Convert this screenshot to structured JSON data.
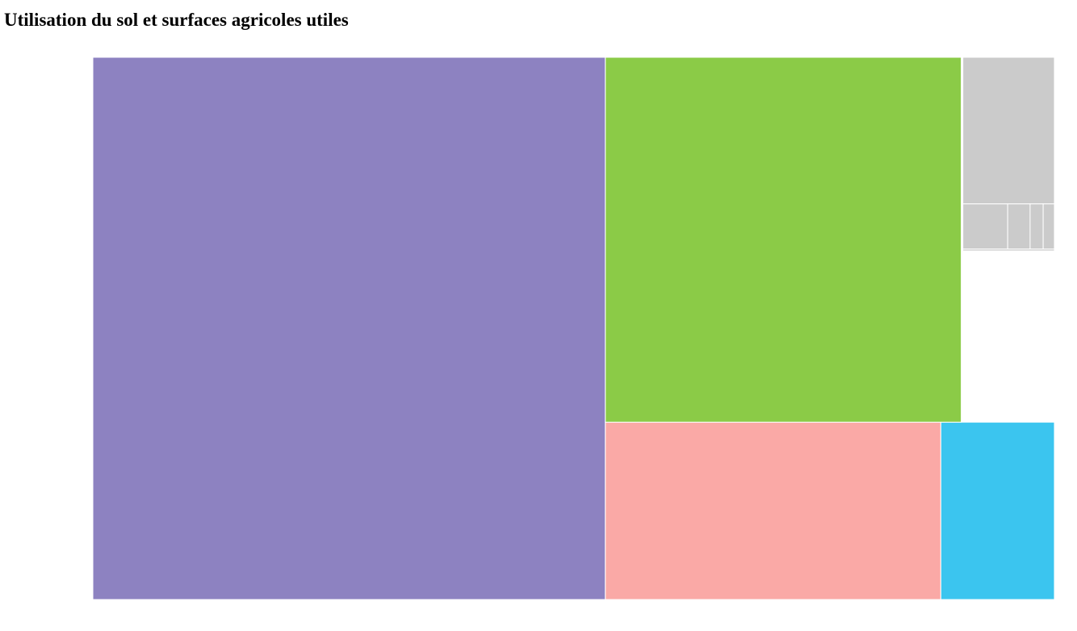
{
  "page": {
    "title": "Utilisation du sol et surfaces agricoles utiles"
  },
  "chart_data": {
    "type": "treemap",
    "title": "Utilisation du sol et surfaces agricoles utiles",
    "nodes": [
      {
        "value": 397446,
        "color": "#8d82c1"
      },
      {
        "children": [
          {
            "value": 185712,
            "color": "#8bcb47"
          },
          {
            "children": [
              {
                "value": 36806,
                "color": "#cbcbcb"
              },
              {
                "value": 5556,
                "color": "#cbcbcb"
              },
              {
                "value": 2778,
                "color": "#cbcbcb"
              },
              {
                "value": 1620,
                "color": "#cbcbcb"
              },
              {
                "value": 1389,
                "color": "#cbcbcb"
              },
              {
                "value": 463,
                "color": "#cbcbcb"
              }
            ]
          }
        ]
      },
      {
        "value": 85098,
        "color": "#faa9a6"
      },
      {
        "value": 28804,
        "color": "#3bc5ef"
      }
    ]
  }
}
